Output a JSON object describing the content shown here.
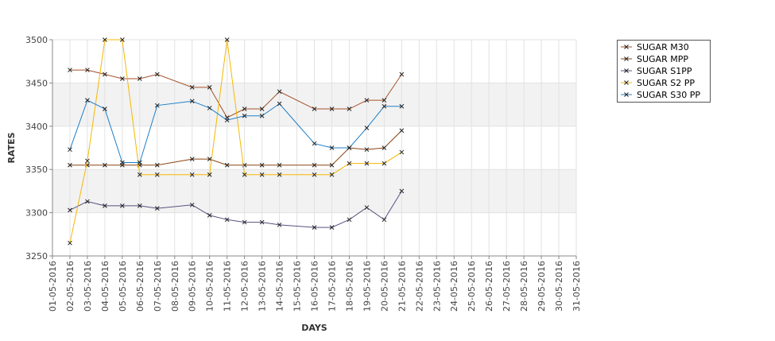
{
  "chart_data": {
    "type": "line",
    "xlabel": "DAYS",
    "ylabel": "RATES",
    "ylim": [
      3250,
      3500
    ],
    "yticks": [
      3250,
      3300,
      3350,
      3400,
      3450,
      3500
    ],
    "grid": true,
    "legend_position": "top-right",
    "categories": [
      "01-05-2016",
      "02-05-2016",
      "03-05-2016",
      "04-05-2016",
      "05-05-2016",
      "06-05-2016",
      "07-05-2016",
      "08-05-2016",
      "09-05-2016",
      "10-05-2016",
      "11-05-2016",
      "12-05-2016",
      "13-05-2016",
      "14-05-2016",
      "15-05-2016",
      "16-05-2016",
      "17-05-2016",
      "18-05-2016",
      "19-05-2016",
      "20-05-2016",
      "21-05-2016",
      "22-05-2016",
      "23-05-2016",
      "24-05-2016",
      "25-05-2016",
      "26-05-2016",
      "27-05-2016",
      "28-05-2016",
      "29-05-2016",
      "30-05-2016",
      "31-05-2016"
    ],
    "series": [
      {
        "name": "SUGAR M30",
        "color": "#a5522a",
        "points": [
          [
            "02-05-2016",
            3465
          ],
          [
            "03-05-2016",
            3465
          ],
          [
            "04-05-2016",
            3460
          ],
          [
            "05-05-2016",
            3455
          ],
          [
            "06-05-2016",
            3455
          ],
          [
            "07-05-2016",
            3460
          ],
          [
            "09-05-2016",
            3445
          ],
          [
            "10-05-2016",
            3445
          ],
          [
            "11-05-2016",
            3410
          ],
          [
            "12-05-2016",
            3420
          ],
          [
            "13-05-2016",
            3420
          ],
          [
            "14-05-2016",
            3440
          ],
          [
            "16-05-2016",
            3420
          ],
          [
            "17-05-2016",
            3420
          ],
          [
            "18-05-2016",
            3420
          ],
          [
            "19-05-2016",
            3430
          ],
          [
            "20-05-2016",
            3430
          ],
          [
            "21-05-2016",
            3460
          ]
        ]
      },
      {
        "name": "SUGAR MPP",
        "color": "#8b4513",
        "points": [
          [
            "02-05-2016",
            3355
          ],
          [
            "03-05-2016",
            3355
          ],
          [
            "04-05-2016",
            3355
          ],
          [
            "05-05-2016",
            3355
          ],
          [
            "06-05-2016",
            3355
          ],
          [
            "07-05-2016",
            3355
          ],
          [
            "09-05-2016",
            3362
          ],
          [
            "10-05-2016",
            3362
          ],
          [
            "11-05-2016",
            3355
          ],
          [
            "12-05-2016",
            3355
          ],
          [
            "13-05-2016",
            3355
          ],
          [
            "14-05-2016",
            3355
          ],
          [
            "16-05-2016",
            3355
          ],
          [
            "17-05-2016",
            3355
          ],
          [
            "18-05-2016",
            3375
          ],
          [
            "19-05-2016",
            3373
          ],
          [
            "20-05-2016",
            3375
          ],
          [
            "21-05-2016",
            3395
          ]
        ]
      },
      {
        "name": "SUGAR S1PP",
        "color": "#5a5080",
        "points": [
          [
            "02-05-2016",
            3303
          ],
          [
            "03-05-2016",
            3313
          ],
          [
            "04-05-2016",
            3308
          ],
          [
            "05-05-2016",
            3308
          ],
          [
            "06-05-2016",
            3308
          ],
          [
            "07-05-2016",
            3305
          ],
          [
            "09-05-2016",
            3309
          ],
          [
            "10-05-2016",
            3297
          ],
          [
            "11-05-2016",
            3292
          ],
          [
            "12-05-2016",
            3289
          ],
          [
            "13-05-2016",
            3289
          ],
          [
            "14-05-2016",
            3286
          ],
          [
            "16-05-2016",
            3283
          ],
          [
            "17-05-2016",
            3283
          ],
          [
            "18-05-2016",
            3292
          ],
          [
            "19-05-2016",
            3306
          ],
          [
            "20-05-2016",
            3292
          ],
          [
            "21-05-2016",
            3325
          ]
        ]
      },
      {
        "name": "SUGAR S2 PP",
        "color": "#f5b800",
        "points": [
          [
            "02-05-2016",
            3265
          ],
          [
            "03-05-2016",
            3360
          ],
          [
            "04-05-2016",
            3500
          ],
          [
            "05-05-2016",
            3500
          ],
          [
            "06-05-2016",
            3344
          ],
          [
            "07-05-2016",
            3344
          ],
          [
            "09-05-2016",
            3344
          ],
          [
            "10-05-2016",
            3344
          ],
          [
            "11-05-2016",
            3500
          ],
          [
            "12-05-2016",
            3344
          ],
          [
            "13-05-2016",
            3344
          ],
          [
            "14-05-2016",
            3344
          ],
          [
            "16-05-2016",
            3344
          ],
          [
            "17-05-2016",
            3344
          ],
          [
            "18-05-2016",
            3357
          ],
          [
            "19-05-2016",
            3357
          ],
          [
            "20-05-2016",
            3357
          ],
          [
            "21-05-2016",
            3370
          ]
        ]
      },
      {
        "name": "SUGAR S30 PP",
        "color": "#1f7fc7",
        "points": [
          [
            "02-05-2016",
            3373
          ],
          [
            "03-05-2016",
            3430
          ],
          [
            "04-05-2016",
            3420
          ],
          [
            "05-05-2016",
            3358
          ],
          [
            "06-05-2016",
            3358
          ],
          [
            "07-05-2016",
            3424
          ],
          [
            "09-05-2016",
            3429
          ],
          [
            "10-05-2016",
            3421
          ],
          [
            "11-05-2016",
            3407
          ],
          [
            "12-05-2016",
            3412
          ],
          [
            "13-05-2016",
            3412
          ],
          [
            "14-05-2016",
            3426
          ],
          [
            "16-05-2016",
            3380
          ],
          [
            "17-05-2016",
            3375
          ],
          [
            "18-05-2016",
            3375
          ],
          [
            "19-05-2016",
            3398
          ],
          [
            "20-05-2016",
            3423
          ],
          [
            "21-05-2016",
            3423
          ]
        ]
      }
    ]
  }
}
